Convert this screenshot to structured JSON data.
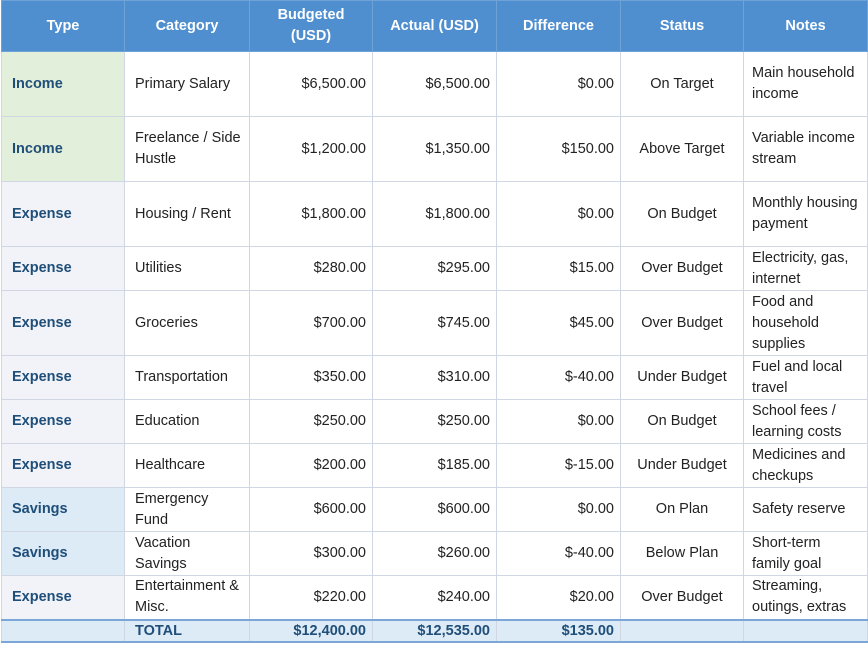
{
  "table": {
    "headers": [
      "Type",
      "Category",
      "Budgeted (USD)",
      "Actual (USD)",
      "Difference",
      "Status",
      "Notes"
    ],
    "rows": [
      [
        "Income",
        "Primary Salary",
        "$6,500.00",
        "$6,500.00",
        "$0.00",
        "On Target",
        "Main household income"
      ],
      [
        "Income",
        "Freelance / Side Hustle",
        "$1,200.00",
        "$1,350.00",
        "$150.00",
        "Above Target",
        "Variable income stream"
      ],
      [
        "Expense",
        "Housing / Rent",
        "$1,800.00",
        "$1,800.00",
        "$0.00",
        "On Budget",
        "Monthly housing payment"
      ],
      [
        "Expense",
        "Utilities",
        "$280.00",
        "$295.00",
        "$15.00",
        "Over Budget",
        "Electricity, gas, internet"
      ],
      [
        "Expense",
        "Groceries",
        "$700.00",
        "$745.00",
        "$45.00",
        "Over Budget",
        "Food and household supplies"
      ],
      [
        "Expense",
        "Transportation",
        "$350.00",
        "$310.00",
        "$-40.00",
        "Under Budget",
        "Fuel and local travel"
      ],
      [
        "Expense",
        "Education",
        "$250.00",
        "$250.00",
        "$0.00",
        "On Budget",
        "School fees / learning costs"
      ],
      [
        "Expense",
        "Healthcare",
        "$200.00",
        "$185.00",
        "$-15.00",
        "Under Budget",
        "Medicines and checkups"
      ],
      [
        "Savings",
        "Emergency Fund",
        "$600.00",
        "$600.00",
        "$0.00",
        "On Plan",
        "Safety reserve"
      ],
      [
        "Savings",
        "Vacation Savings",
        "$300.00",
        "$260.00",
        "$-40.00",
        "Below Plan",
        "Short-term family goal"
      ],
      [
        "Expense",
        "Entertainment & Misc.",
        "$220.00",
        "$240.00",
        "$20.00",
        "Over Budget",
        "Streaming, outings, extras"
      ]
    ],
    "total": {
      "label": "TOTAL",
      "budgeted": "$12,400.00",
      "actual": "$12,535.00",
      "difference": "$135.00"
    }
  }
}
